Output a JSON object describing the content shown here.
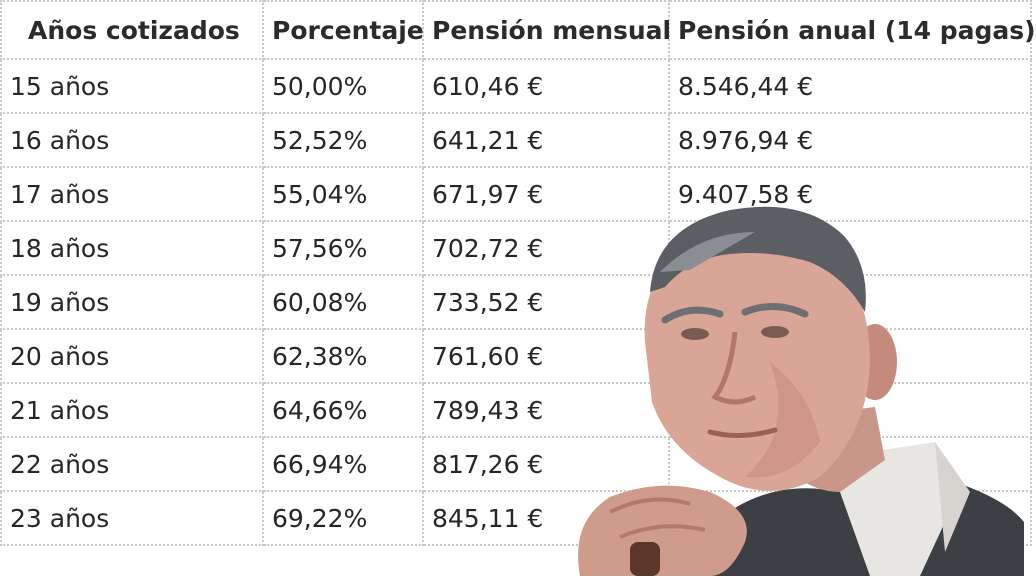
{
  "table": {
    "headers": [
      "Años cotizados",
      "Porcentaje",
      "Pensión mensual",
      "Pensión anual (14 pagas)"
    ],
    "rows": [
      [
        "15 años",
        "50,00%",
        "610,46 €",
        "8.546,44 €"
      ],
      [
        "16 años",
        "52,52%",
        "641,21 €",
        "8.976,94 €"
      ],
      [
        "17 años",
        "55,04%",
        "671,97 €",
        "9.407,58 €"
      ],
      [
        "18 años",
        "57,56%",
        "702,72 €",
        ""
      ],
      [
        "19 años",
        "60,08%",
        "733,52 €",
        ""
      ],
      [
        "20 años",
        "62,38%",
        "761,60 €",
        ""
      ],
      [
        "21 años",
        "64,66%",
        "789,43 €",
        ""
      ],
      [
        "22 años",
        "66,94%",
        "817,26 €",
        ""
      ],
      [
        "23 años",
        "69,22%",
        "845,11 €",
        ""
      ]
    ]
  },
  "photo": {
    "subject": "elderly-man-portrait-icon"
  }
}
